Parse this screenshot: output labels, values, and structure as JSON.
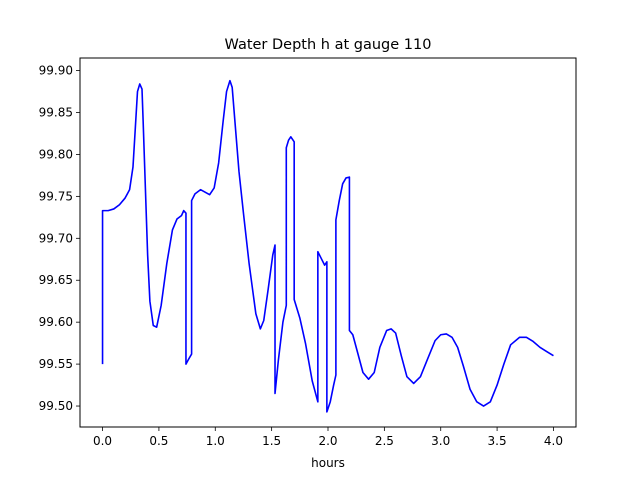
{
  "chart_data": {
    "type": "line",
    "title": "Water Depth h at gauge 110",
    "xlabel": "hours",
    "ylabel": "",
    "xlim": [
      -0.2,
      4.2
    ],
    "ylim": [
      99.475,
      99.915
    ],
    "grid": false,
    "x_ticks": [
      0.0,
      0.5,
      1.0,
      1.5,
      2.0,
      2.5,
      3.0,
      3.5,
      4.0
    ],
    "x_tick_labels": [
      "0.0",
      "0.5",
      "1.0",
      "1.5",
      "2.0",
      "2.5",
      "3.0",
      "3.5",
      "4.0"
    ],
    "y_ticks": [
      99.5,
      99.55,
      99.6,
      99.65,
      99.7,
      99.75,
      99.8,
      99.85,
      99.9
    ],
    "y_tick_labels": [
      "99.50",
      "99.55",
      "99.60",
      "99.65",
      "99.70",
      "99.75",
      "99.80",
      "99.85",
      "99.90"
    ],
    "series": [
      {
        "color": "#0000ff",
        "points": [
          [
            0.0,
            99.55
          ],
          [
            0.0,
            99.733
          ],
          [
            0.05,
            99.733
          ],
          [
            0.1,
            99.735
          ],
          [
            0.15,
            99.74
          ],
          [
            0.2,
            99.748
          ],
          [
            0.24,
            99.758
          ],
          [
            0.27,
            99.785
          ],
          [
            0.29,
            99.83
          ],
          [
            0.31,
            99.875
          ],
          [
            0.33,
            99.884
          ],
          [
            0.35,
            99.878
          ],
          [
            0.36,
            99.84
          ],
          [
            0.38,
            99.76
          ],
          [
            0.4,
            99.68
          ],
          [
            0.42,
            99.625
          ],
          [
            0.45,
            99.596
          ],
          [
            0.48,
            99.594
          ],
          [
            0.52,
            99.62
          ],
          [
            0.57,
            99.67
          ],
          [
            0.62,
            99.71
          ],
          [
            0.66,
            99.723
          ],
          [
            0.7,
            99.727
          ],
          [
            0.72,
            99.733
          ],
          [
            0.74,
            99.73
          ],
          [
            0.74,
            99.55
          ],
          [
            0.76,
            99.555
          ],
          [
            0.79,
            99.562
          ],
          [
            0.79,
            99.745
          ],
          [
            0.82,
            99.753
          ],
          [
            0.87,
            99.758
          ],
          [
            0.91,
            99.755
          ],
          [
            0.95,
            99.752
          ],
          [
            0.99,
            99.76
          ],
          [
            1.03,
            99.79
          ],
          [
            1.07,
            99.84
          ],
          [
            1.1,
            99.875
          ],
          [
            1.13,
            99.888
          ],
          [
            1.15,
            99.88
          ],
          [
            1.18,
            99.83
          ],
          [
            1.21,
            99.78
          ],
          [
            1.25,
            99.73
          ],
          [
            1.3,
            99.67
          ],
          [
            1.36,
            99.61
          ],
          [
            1.4,
            99.592
          ],
          [
            1.43,
            99.602
          ],
          [
            1.47,
            99.64
          ],
          [
            1.51,
            99.68
          ],
          [
            1.53,
            99.692
          ],
          [
            1.53,
            99.515
          ],
          [
            1.56,
            99.555
          ],
          [
            1.6,
            99.6
          ],
          [
            1.63,
            99.62
          ],
          [
            1.63,
            99.808
          ],
          [
            1.65,
            99.817
          ],
          [
            1.67,
            99.821
          ],
          [
            1.7,
            99.815
          ],
          [
            1.7,
            99.627
          ],
          [
            1.75,
            99.605
          ],
          [
            1.8,
            99.575
          ],
          [
            1.86,
            99.53
          ],
          [
            1.91,
            99.505
          ],
          [
            1.91,
            99.684
          ],
          [
            1.94,
            99.676
          ],
          [
            1.97,
            99.668
          ],
          [
            1.99,
            99.672
          ],
          [
            1.99,
            99.493
          ],
          [
            2.02,
            99.505
          ],
          [
            2.05,
            99.525
          ],
          [
            2.07,
            99.537
          ],
          [
            2.07,
            99.722
          ],
          [
            2.1,
            99.745
          ],
          [
            2.13,
            99.765
          ],
          [
            2.16,
            99.772
          ],
          [
            2.19,
            99.773
          ],
          [
            2.19,
            99.59
          ],
          [
            2.22,
            99.585
          ],
          [
            2.26,
            99.565
          ],
          [
            2.31,
            99.54
          ],
          [
            2.36,
            99.532
          ],
          [
            2.41,
            99.54
          ],
          [
            2.46,
            99.57
          ],
          [
            2.52,
            99.59
          ],
          [
            2.56,
            99.592
          ],
          [
            2.6,
            99.587
          ],
          [
            2.65,
            99.56
          ],
          [
            2.7,
            99.535
          ],
          [
            2.76,
            99.527
          ],
          [
            2.82,
            99.535
          ],
          [
            2.88,
            99.555
          ],
          [
            2.95,
            99.578
          ],
          [
            3.0,
            99.585
          ],
          [
            3.05,
            99.586
          ],
          [
            3.1,
            99.582
          ],
          [
            3.15,
            99.57
          ],
          [
            3.2,
            99.548
          ],
          [
            3.26,
            99.52
          ],
          [
            3.32,
            99.505
          ],
          [
            3.38,
            99.5
          ],
          [
            3.44,
            99.505
          ],
          [
            3.5,
            99.525
          ],
          [
            3.56,
            99.55
          ],
          [
            3.62,
            99.573
          ],
          [
            3.7,
            99.582
          ],
          [
            3.76,
            99.582
          ],
          [
            3.82,
            99.577
          ],
          [
            3.88,
            99.57
          ],
          [
            3.94,
            99.565
          ],
          [
            4.0,
            99.56
          ]
        ]
      }
    ]
  }
}
